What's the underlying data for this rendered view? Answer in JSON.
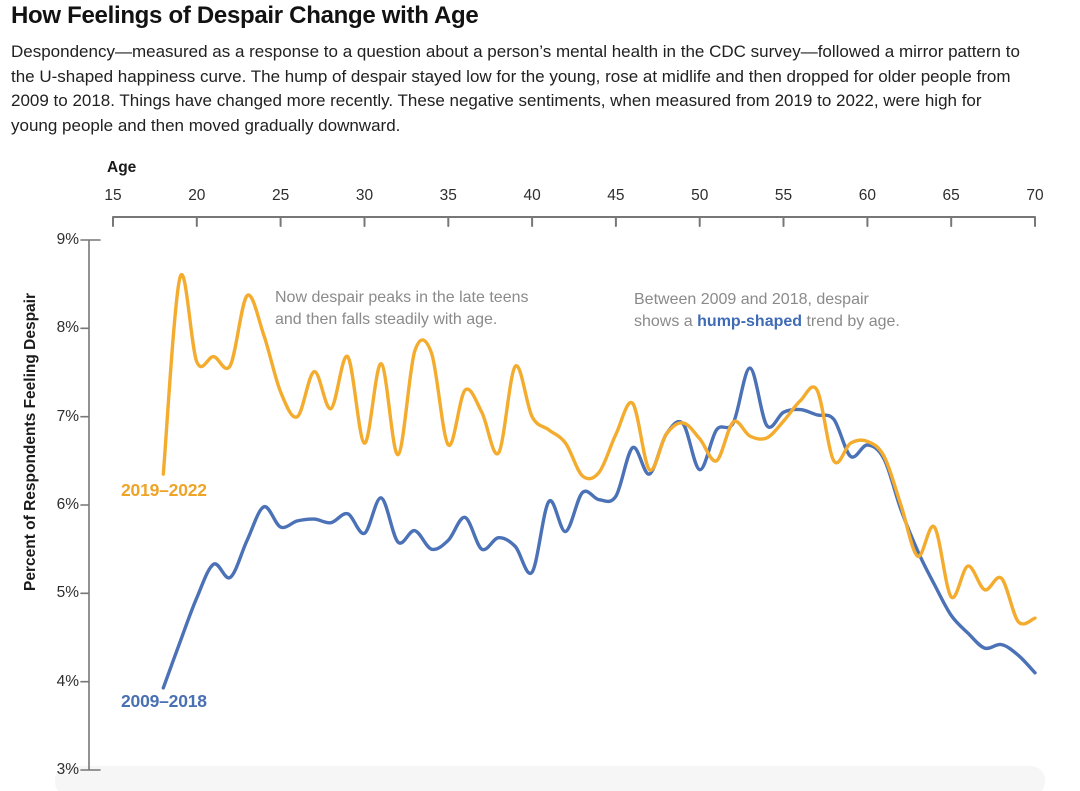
{
  "header": {
    "title": "How Feelings of Despair Change with Age",
    "description": "Despondency—measured as a response to a question about a person’s mental health in the CDC survey—followed a mirror pattern to the U-shaped happiness curve. The hump of despair stayed low for the young, rose at midlife and then dropped for older people from 2009 to 2018. Things have changed more recently. These negative sentiments, when measured from 2019 to 2022, were high for young people and then moved gradually downward."
  },
  "chart_data": {
    "type": "line",
    "title": "How Feelings of Despair Change with Age",
    "xlabel": "Age",
    "ylabel": "Percent of Respondents Feeling Despair",
    "xlim": [
      15,
      70
    ],
    "ylim": [
      3,
      9
    ],
    "grid": false,
    "legend_position": "on-chart-labels",
    "x_ticks": [
      15,
      20,
      25,
      30,
      35,
      40,
      45,
      50,
      55,
      60,
      65,
      70
    ],
    "y_ticks": [
      9,
      8,
      7,
      6,
      5,
      4,
      3
    ],
    "y_tick_labels": [
      "9%",
      "8%",
      "7%",
      "6%",
      "5%",
      "4%",
      "3%"
    ],
    "x": [
      18,
      19,
      20,
      21,
      22,
      23,
      24,
      25,
      26,
      27,
      28,
      29,
      30,
      31,
      32,
      33,
      34,
      35,
      36,
      37,
      38,
      39,
      40,
      41,
      42,
      43,
      44,
      45,
      46,
      47,
      48,
      49,
      50,
      51,
      52,
      53,
      54,
      55,
      56,
      57,
      58,
      59,
      60,
      61,
      62,
      63,
      64,
      65,
      66,
      67,
      68,
      69,
      70
    ],
    "series": [
      {
        "name": "2009–2018",
        "color": "#4b71b6",
        "values": [
          3.93,
          4.45,
          4.95,
          5.33,
          5.18,
          5.6,
          5.98,
          5.75,
          5.82,
          5.84,
          5.8,
          5.9,
          5.68,
          6.08,
          5.58,
          5.71,
          5.5,
          5.6,
          5.86,
          5.5,
          5.63,
          5.53,
          5.24,
          6.04,
          5.7,
          6.14,
          6.06,
          6.1,
          6.65,
          6.35,
          6.8,
          6.92,
          6.4,
          6.85,
          6.93,
          7.55,
          6.9,
          7.05,
          7.08,
          7.02,
          6.97,
          6.55,
          6.68,
          6.52,
          5.95,
          5.48,
          5.1,
          4.75,
          4.55,
          4.38,
          4.42,
          4.3,
          4.1
        ]
      },
      {
        "name": "2019–2022",
        "color": "#f4ac2e",
        "values": [
          6.35,
          8.58,
          7.62,
          7.68,
          7.58,
          8.37,
          7.92,
          7.28,
          7.0,
          7.51,
          7.09,
          7.68,
          6.7,
          7.6,
          6.57,
          7.74,
          7.72,
          6.68,
          7.3,
          7.05,
          6.59,
          7.57,
          7.0,
          6.85,
          6.7,
          6.33,
          6.37,
          6.8,
          7.15,
          6.4,
          6.8,
          6.93,
          6.75,
          6.5,
          6.94,
          6.78,
          6.76,
          6.95,
          7.18,
          7.3,
          6.5,
          6.7,
          6.72,
          6.55,
          6.0,
          5.42,
          5.75,
          4.96,
          5.31,
          5.04,
          5.17,
          4.68,
          4.72
        ]
      }
    ]
  },
  "annotations": {
    "teens": {
      "line1": "Now despair peaks in the late teens",
      "line2": "and then falls steadily with age."
    },
    "hump": {
      "line1": "Between 2009 and 2018, despair",
      "line2_pre": "shows a ",
      "line2_bold": "hump-shaped",
      "line2_post": " trend by age."
    }
  },
  "series_labels": {
    "gold": "2019–2022",
    "blue": "2009–2018"
  }
}
